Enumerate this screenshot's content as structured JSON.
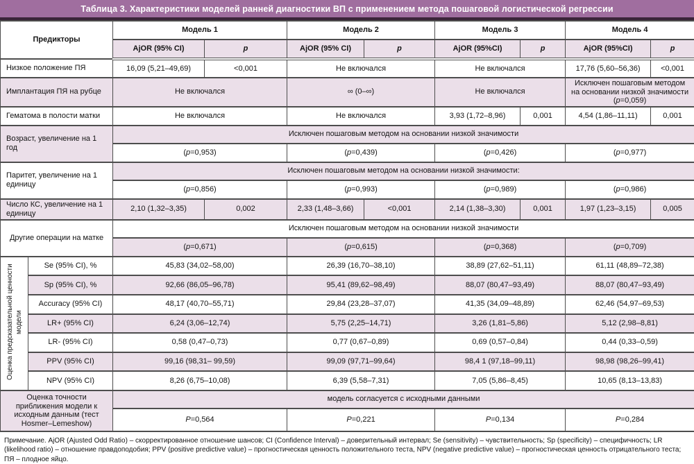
{
  "title": "Таблица 3. Характеристики моделей ранней диагностики ВП с применением метода пошаговой логистической регрессии",
  "colors": {
    "accent_purple": "#a06e9f",
    "title_underline": "#3a2438",
    "stripe_pink": "#ebdfe9",
    "border": "#4d4d4d"
  },
  "header": {
    "predictors": "Предикторы",
    "models": [
      {
        "label": "Модель 1",
        "ajor": "AjOR (95% CI)",
        "p": "p"
      },
      {
        "label": "Модель 2",
        "ajor": "AjOR (95% CI)",
        "p": "p"
      },
      {
        "label": "Модель 3",
        "ajor": "AjOR (95%CI)",
        "p": "p"
      },
      {
        "label": "Модель 4",
        "ajor": "AjOR (95%CI)",
        "p": "p"
      }
    ]
  },
  "rows": {
    "low_position": {
      "label": "Низкое положение ПЯ",
      "m1_ajor": "16,09 (5,21–49,69)",
      "m1_p": "<0,001",
      "m2": "Не включался",
      "m3": "Не включался",
      "m4_ajor": "17,76 (5,60–56,36)",
      "m4_p": "<0,001"
    },
    "implantation": {
      "label": "Имплантация ПЯ  на рубце",
      "m1": "Не включался",
      "m2": "∞ (0–∞)",
      "m3": "Не включался",
      "m4": "Исключен пошаговым методом на основании низкой значимости (p=0,059)"
    },
    "hematoma": {
      "label": "Гематома в полости матки",
      "m1": "Не включался",
      "m2": "Не включался",
      "m3_ajor": "3,93 (1,72–8,96)",
      "m3_p": "0,001",
      "m4_ajor": "4,54 (1,86–11,11)",
      "m4_p": "0,001"
    },
    "age": {
      "label": "Возраст, увеличение на 1 год",
      "band": "Исключен пошаговым методом на основании низкой значимости",
      "p": [
        "(p=0,953)",
        "(p=0,439)",
        "(p=0,426)",
        "(p=0,977)"
      ]
    },
    "parity": {
      "label": "Паритет, увеличение на 1 единицу",
      "band": "Исключен пошаговым методом на основании низкой значимости:",
      "p": [
        "(p=0,856)",
        "(p=0,993)",
        "(p=0,989)",
        "(p=0,986)"
      ]
    },
    "cs_count": {
      "label": "Число КС, увеличение на 1 единицу",
      "m1_ajor": "2,10 (1,32–3,35)",
      "m1_p": "0,002",
      "m2_ajor": "2,33 (1,48–3,66)",
      "m2_p": "<0,001",
      "m3_ajor": "2,14 (1,38–3,30)",
      "m3_p": "0,001",
      "m4_ajor": "1,97 (1,23–3,15)",
      "m4_p": "0,005"
    },
    "other_surgeries": {
      "label": "Другие операции на матке",
      "band": "Исключен пошаговым методом на основании низкой значимости",
      "p": [
        "(p=0,671)",
        "(p=0,615)",
        "(p=0,368)",
        "(p=0,709)"
      ]
    }
  },
  "predictive": {
    "label": "Оценка предсказательной ценности модели",
    "metrics": [
      {
        "name": "Se (95% CI), %",
        "values": [
          "45,83 (34,02–58,00)",
          "26,39 (16,70–38,10)",
          "38,89 (27,62–51,11)",
          "61,11 (48,89–72,38)"
        ]
      },
      {
        "name": "Sp (95% CI), %",
        "values": [
          "92,66 (86,05–96,78)",
          "95,41 (89,62–98,49)",
          "88,07 (80,47–93,49)",
          "88,07 (80,47–93,49)"
        ]
      },
      {
        "name": "Accuracy (95% CI)",
        "values": [
          "48,17 (40,70–55,71)",
          "29,84 (23,28–37,07)",
          "41,35 (34,09–48,89)",
          "62,46 (54,97–69,53)"
        ]
      },
      {
        "name": "LR+ (95% CI)",
        "values": [
          "6,24 (3,06–12,74)",
          "5,75 (2,25–14,71)",
          "3,26 (1,81–5,86)",
          "5,12 (2,98–8,81)"
        ]
      },
      {
        "name": "LR- (95% CI)",
        "values": [
          "0,58 (0,47–0,73)",
          "0,77 (0,67–0,89)",
          "0,69 (0,57–0,84)",
          "0,44 (0,33–0,59)"
        ]
      },
      {
        "name": "PPV (95% CI)",
        "values": [
          "99,16 (98,31– 99,59)",
          "99,09 (97,71–99,64)",
          "98,4 1 (97,18–99,11)",
          "98,98 (98,26–99,41)"
        ]
      },
      {
        "name": "NPV (95% CI)",
        "values": [
          "8,26 (6,75–10,08)",
          "6,39 (5,58–7,31)",
          "7,05 (5,86–8,45)",
          "10,65 (8,13–13,83)"
        ]
      }
    ]
  },
  "hosmer": {
    "label": "Оценка точности приближения модели к исходным данным (тест Hosmer–Lemeshow)",
    "band": "модель согласуется с исходными данными",
    "p": [
      "P=0,564",
      "P=0,221",
      "P=0,134",
      "P=0,284"
    ]
  },
  "footnote": "Примечание. AjOR (Ajusted Odd Ratio) – скорректированное отношение шансов; CI (Confidence Interval) – доверительный интервал; Se (sensitivity) – чувствительность; Sp (specificity)  – специфичность;  LR (likelihood  ratio) – отношение правдоподобия; PPV (positive predictive value) – прогностическая ценность положительного теста, NPV (negative predictive value) – прогностическая ценность отрицательного теста; ПЯ – плодное яйцо."
}
